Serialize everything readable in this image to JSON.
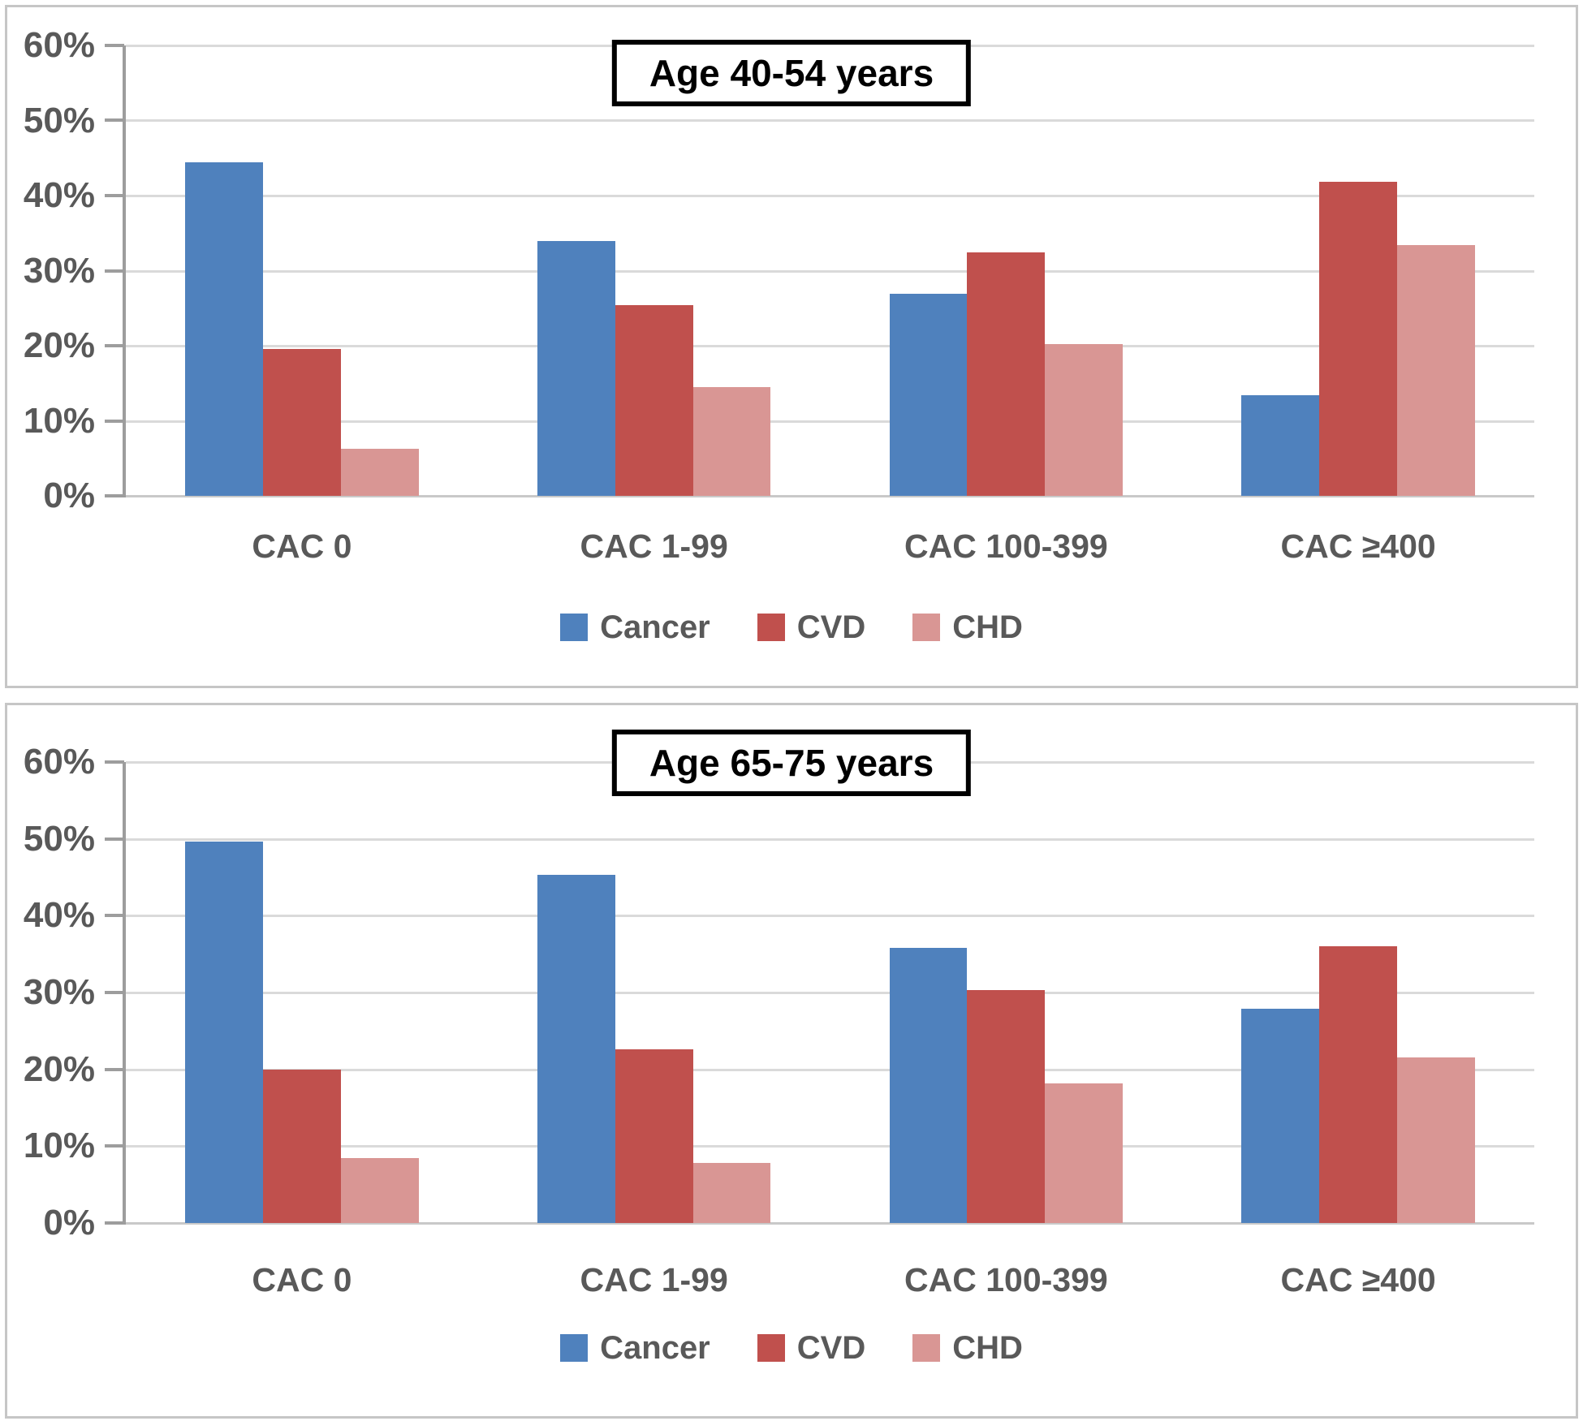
{
  "chart_data": [
    {
      "type": "bar",
      "title": "Age 40-54 years",
      "categories": [
        "CAC 0",
        "CAC 1-99",
        "CAC 100-399",
        "CAC ≥400"
      ],
      "series": [
        {
          "name": "Cancer",
          "color": "#4F81BD",
          "values": [
            44.4,
            34.0,
            26.9,
            13.4
          ]
        },
        {
          "name": "CVD",
          "color": "#C0504D",
          "values": [
            19.6,
            25.4,
            32.4,
            41.8
          ]
        },
        {
          "name": "CHD",
          "color": "#D99694",
          "values": [
            6.3,
            14.5,
            20.2,
            33.4
          ]
        }
      ],
      "ylabel": "",
      "xlabel": "",
      "ylim": [
        0,
        60
      ],
      "y_tick_labels": [
        "60%",
        "50%",
        "40%",
        "30%",
        "20%",
        "10%",
        "0%"
      ],
      "grid": true,
      "legend_position": "bottom"
    },
    {
      "type": "bar",
      "title": "Age 65-75 years",
      "categories": [
        "CAC 0",
        "CAC 1-99",
        "CAC 100-399",
        "CAC ≥400"
      ],
      "series": [
        {
          "name": "Cancer",
          "color": "#4F81BD",
          "values": [
            49.6,
            45.3,
            35.8,
            27.9
          ]
        },
        {
          "name": "CVD",
          "color": "#C0504D",
          "values": [
            20.0,
            22.6,
            30.3,
            36.0
          ]
        },
        {
          "name": "CHD",
          "color": "#D99694",
          "values": [
            8.4,
            7.8,
            18.2,
            21.6
          ]
        }
      ],
      "ylabel": "",
      "xlabel": "",
      "ylim": [
        0,
        60
      ],
      "y_tick_labels": [
        "60%",
        "50%",
        "40%",
        "30%",
        "20%",
        "10%",
        "0%"
      ],
      "grid": true,
      "legend_position": "bottom"
    }
  ],
  "styles": {
    "grid_color": "#DADADA",
    "axis_color": "#9D9D9D",
    "label_color": "#595959",
    "title_color": "#000000",
    "panel_border_color": "#C6C6C6",
    "background_color": "#FFFFFF"
  }
}
